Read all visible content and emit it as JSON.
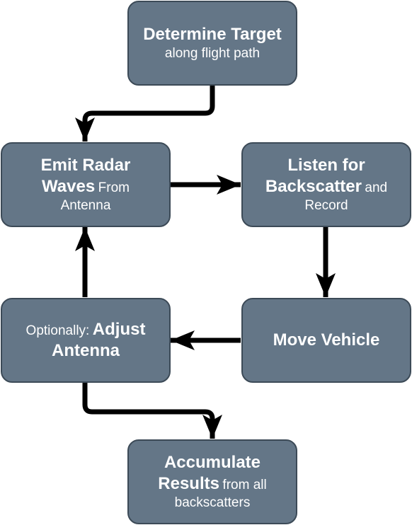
{
  "nodes": {
    "determine": {
      "bold": "Determine Target",
      "rest": "along flight path"
    },
    "emit": {
      "bold": "Emit Radar Waves",
      "rest": "From Antenna"
    },
    "listen": {
      "bold": "Listen for Backscatter",
      "rest": "and Record"
    },
    "move": {
      "bold": "Move Vehicle",
      "rest": ""
    },
    "adjust": {
      "pre": "Optionally:",
      "bold": "Adjust Antenna"
    },
    "accumulate": {
      "bold": "Accumulate Results",
      "rest": "from all backscatters"
    }
  },
  "colors": {
    "box_fill": "#647687",
    "box_border": "#3c4a57",
    "text": "#ffffff",
    "arrow": "#000000"
  }
}
